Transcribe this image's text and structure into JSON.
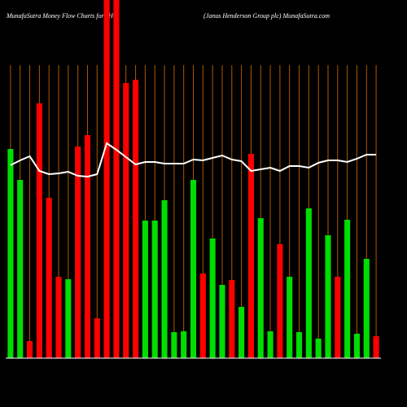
{
  "chart_data": {
    "type": "bar",
    "title": "MunafaSutra  Money Flow  Charts for JHG",
    "subtitle": "(Janus Henderson  Group plc) MunafaSutra.com",
    "categories": [
      null,
      null,
      null,
      null,
      null,
      null,
      null,
      null,
      null,
      null,
      null,
      null,
      null,
      null,
      null,
      null,
      null,
      null,
      null,
      null,
      null,
      null,
      null,
      null,
      null,
      null,
      null,
      null,
      null,
      null,
      null,
      null,
      null,
      null,
      null,
      null,
      null,
      null,
      null
    ],
    "values": [
      257,
      219,
      21,
      313,
      197,
      100,
      97,
      260,
      274,
      49,
      440,
      440,
      338,
      342,
      169,
      169,
      194,
      32,
      33,
      219,
      104,
      147,
      90,
      96,
      63,
      251,
      172,
      33,
      140,
      100,
      32,
      184,
      24,
      151,
      100,
      170,
      30,
      122,
      27
    ],
    "colors": [
      "#00dd00",
      "#00dd00",
      "#ff0000",
      "#ff0000",
      "#ff0000",
      "#ff0000",
      "#00dd00",
      "#ff0000",
      "#ff0000",
      "#ff0000",
      "#ff0000",
      "#ff0000",
      "#ff0000",
      "#ff0000",
      "#00dd00",
      "#00dd00",
      "#00dd00",
      "#00dd00",
      "#00dd00",
      "#00dd00",
      "#ff0000",
      "#00dd00",
      "#00dd00",
      "#ff0000",
      "#00dd00",
      "#ff0000",
      "#00dd00",
      "#00dd00",
      "#ff0000",
      "#00dd00",
      "#00dd00",
      "#00dd00",
      "#00dd00",
      "#00dd00",
      "#ff0000",
      "#00dd00",
      "#00dd00",
      "#00dd00",
      "#ff0000"
    ],
    "line": {
      "color": "#ffffff",
      "values": [
        237,
        243,
        248,
        230,
        226,
        227,
        229,
        224,
        223,
        226,
        264,
        256,
        247,
        238,
        241,
        241,
        239,
        239,
        239,
        244,
        243,
        246,
        249,
        244,
        242,
        230,
        232,
        234,
        230,
        236,
        236,
        234,
        240,
        243,
        243,
        241,
        245,
        250,
        250
      ]
    },
    "grid_color": "#b35900",
    "ylim": [
      0,
      440
    ],
    "grid": true
  }
}
